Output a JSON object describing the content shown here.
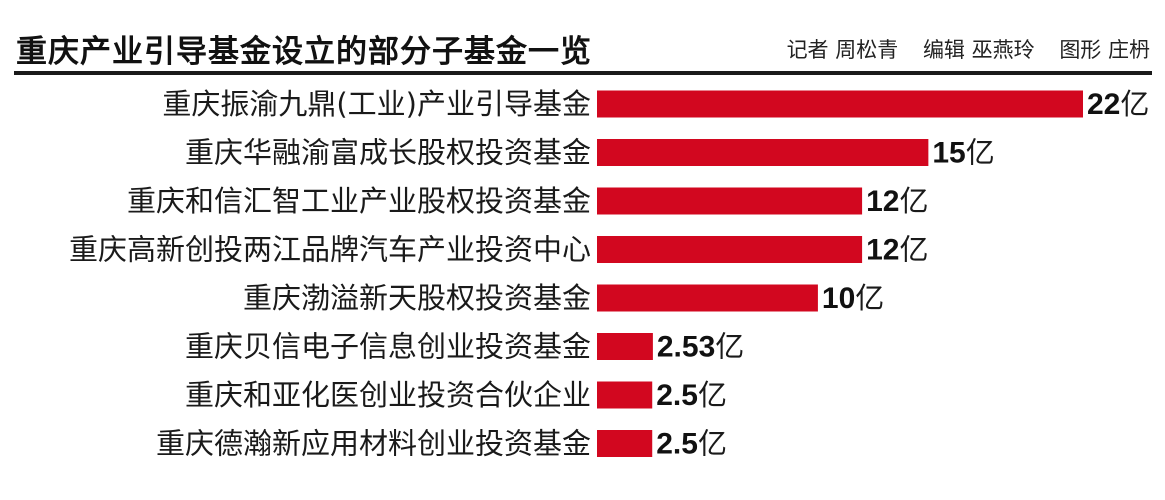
{
  "header": {
    "title": "重庆产业引导基金设立的部分子基金一览",
    "credits": [
      "记者 周松青",
      "编辑 巫燕玲",
      "图形 庄枬"
    ]
  },
  "chart_data": {
    "type": "bar",
    "orientation": "horizontal",
    "categories": [
      "重庆振渝九鼎(工业)产业引导基金",
      "重庆华融渝富成长股权投资基金",
      "重庆和信汇智工业产业股权投资基金",
      "重庆高新创投两江品牌汽车产业投资中心",
      "重庆渤溢新天股权投资基金",
      "重庆贝信电子信息创业投资基金",
      "重庆和亚化医创业投资合伙企业",
      "重庆德瀚新应用材料创业投资基金"
    ],
    "values": [
      22,
      15,
      12,
      12,
      10,
      2.53,
      2.5,
      2.5
    ],
    "value_labels": [
      "22",
      "15",
      "12",
      "12",
      "10",
      "2.53",
      "2.5",
      "2.5"
    ],
    "unit": "亿",
    "bar_color": "#d2071f",
    "xlim": [
      0,
      22
    ],
    "grid": false,
    "legend": "none"
  }
}
